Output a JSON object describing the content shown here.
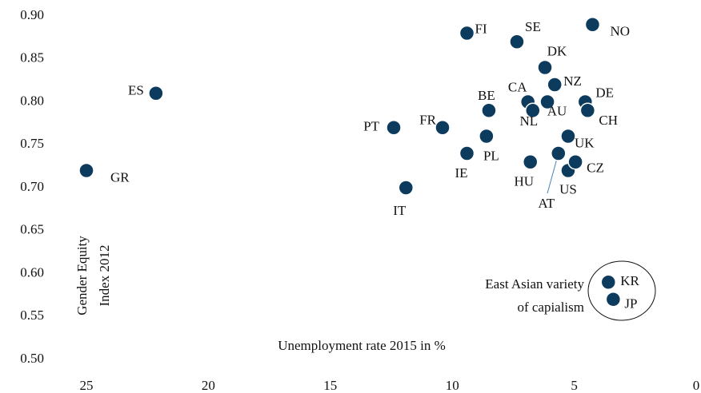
{
  "chart_data": {
    "type": "scatter",
    "labels": [
      "GR",
      "ES",
      "PT",
      "IT",
      "FR",
      "IE",
      "FI",
      "PL",
      "BE",
      "SE",
      "HU",
      "CA",
      "NL",
      "AU",
      "DK",
      "NZ",
      "AT",
      "UK",
      "US",
      "CZ",
      "DE",
      "CH",
      "NO",
      "KR",
      "JP"
    ],
    "x": [
      25.0,
      22.15,
      12.4,
      11.9,
      10.4,
      9.4,
      9.4,
      8.6,
      8.5,
      7.35,
      6.8,
      6.9,
      6.7,
      6.1,
      6.2,
      5.8,
      5.65,
      5.25,
      5.25,
      4.95,
      4.55,
      4.45,
      4.25,
      3.6,
      3.4
    ],
    "values": [
      0.72,
      0.81,
      0.77,
      0.7,
      0.77,
      0.74,
      0.88,
      0.76,
      0.79,
      0.87,
      0.73,
      0.8,
      0.79,
      0.8,
      0.84,
      0.82,
      0.74,
      0.76,
      0.72,
      0.73,
      0.8,
      0.79,
      0.89,
      0.59,
      0.57
    ],
    "color": "#0d3b5e",
    "xlim": [
      25,
      0
    ],
    "xticks": [
      25,
      20,
      15,
      10,
      5,
      0
    ],
    "ylim": [
      0.5,
      0.9
    ],
    "yticks": [
      {
        "value": 0.5,
        "label": "0.50"
      },
      {
        "value": 0.55,
        "label": "0.55"
      },
      {
        "value": 0.6,
        "label": "0.60"
      },
      {
        "value": 0.65,
        "label": "0.65"
      },
      {
        "value": 0.7,
        "label": "0.70"
      },
      {
        "value": 0.75,
        "label": "0.75"
      },
      {
        "value": 0.8,
        "label": "0.80"
      },
      {
        "value": 0.85,
        "label": "0.85"
      },
      {
        "value": 0.9,
        "label": "0.90"
      }
    ],
    "x_label": "Unemployment rate 2015 in %",
    "y_label": [
      "Gender Equity",
      "Index  2012"
    ],
    "annotation": [
      "East Asian variety",
      "of capialism"
    ]
  }
}
